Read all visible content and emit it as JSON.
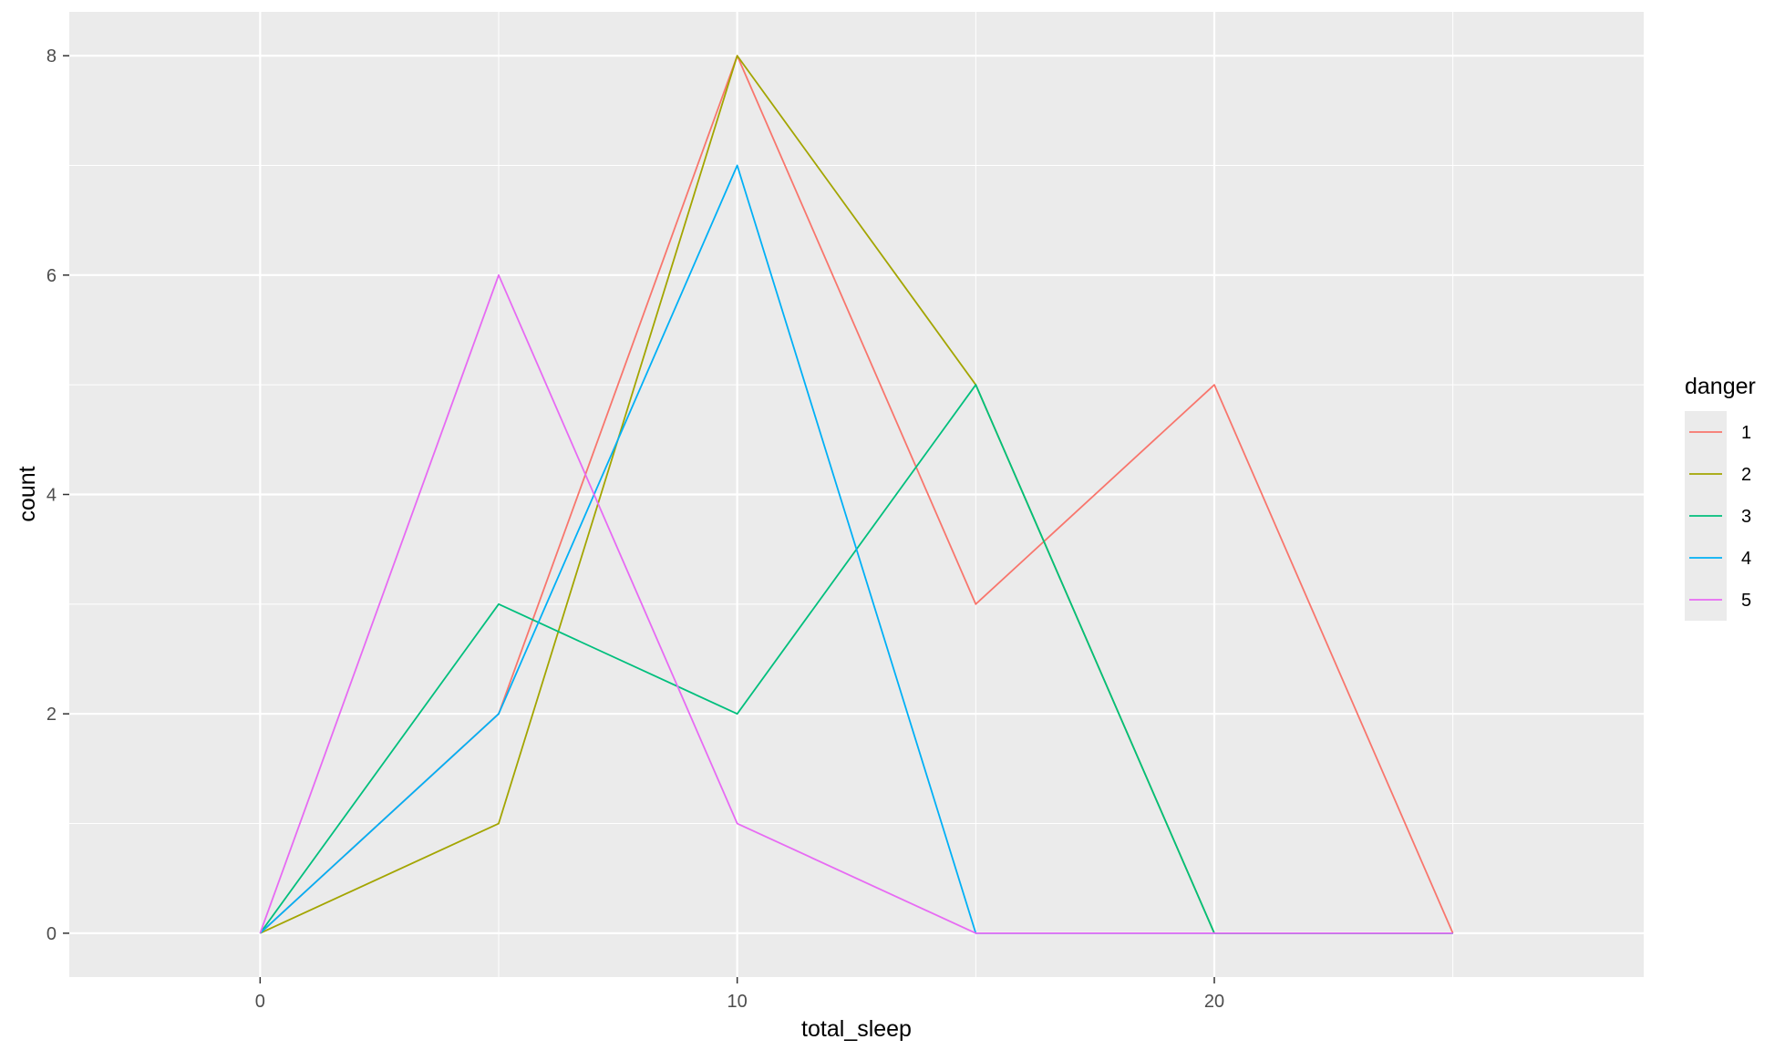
{
  "chart_data": {
    "type": "line",
    "title": "",
    "xlabel": "total_sleep",
    "ylabel": "count",
    "x": [
      0,
      5,
      10,
      15,
      20,
      25
    ],
    "xlim": [
      -4,
      29
    ],
    "ylim": [
      -0.4,
      8.4
    ],
    "x_ticks": [
      0,
      10,
      20
    ],
    "y_ticks": [
      0,
      2,
      4,
      6,
      8
    ],
    "grid": true,
    "legend": {
      "title": "danger",
      "placement": "right"
    },
    "series": [
      {
        "name": "1",
        "color": "#F8766D",
        "values": [
          0,
          2,
          8,
          3,
          5,
          0
        ]
      },
      {
        "name": "2",
        "color": "#A3A500",
        "values": [
          0,
          1,
          8,
          5,
          0,
          0
        ]
      },
      {
        "name": "3",
        "color": "#00BF7D",
        "values": [
          0,
          3,
          2,
          5,
          0,
          0
        ]
      },
      {
        "name": "4",
        "color": "#00B0F6",
        "values": [
          0,
          2,
          7,
          0,
          0,
          0
        ]
      },
      {
        "name": "5",
        "color": "#E76BF3",
        "values": [
          0,
          6,
          1,
          0,
          0,
          0
        ]
      }
    ],
    "colors": {
      "panel_background": "#EBEBEB",
      "grid": "#FFFFFF",
      "tick_text": "#4D4D4D"
    }
  }
}
